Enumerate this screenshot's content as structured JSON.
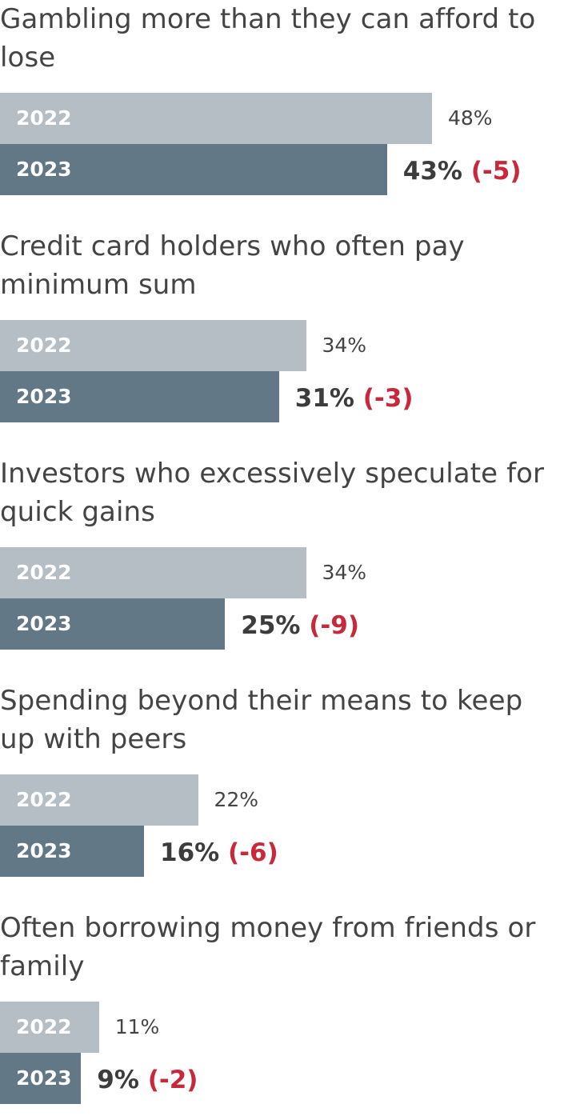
{
  "chart_data": {
    "type": "bar",
    "orientation": "horizontal",
    "series_names": [
      "2022",
      "2023"
    ],
    "colors": {
      "prev": "#b4bec4",
      "curr": "#627886",
      "change_text": "#c8283a",
      "text": "#444444"
    },
    "xlim": [
      0,
      100
    ],
    "categories": [
      {
        "label": "Gambling more than they can afford to lose",
        "v2022": 48,
        "v2023": 43,
        "v2022_text": "48%",
        "v2023_text": "43%",
        "change_text": "(-5)"
      },
      {
        "label": "Credit card holders who often pay minimum sum",
        "v2022": 34,
        "v2023": 31,
        "v2022_text": "34%",
        "v2023_text": "31%",
        "change_text": "(-3)"
      },
      {
        "label": "Investors who excessively speculate for quick gains",
        "v2022": 34,
        "v2023": 25,
        "v2022_text": "34%",
        "v2023_text": "25%",
        "change_text": "(-9)"
      },
      {
        "label": "Spending beyond their means to keep up with peers",
        "v2022": 22,
        "v2023": 16,
        "v2022_text": "22%",
        "v2023_text": "16%",
        "change_text": "(-6)"
      },
      {
        "label": "Often borrowing money from friends or family",
        "v2022": 11,
        "v2023": 9,
        "v2022_text": "11%",
        "v2023_text": "9%",
        "change_text": "(-2)"
      }
    ]
  }
}
